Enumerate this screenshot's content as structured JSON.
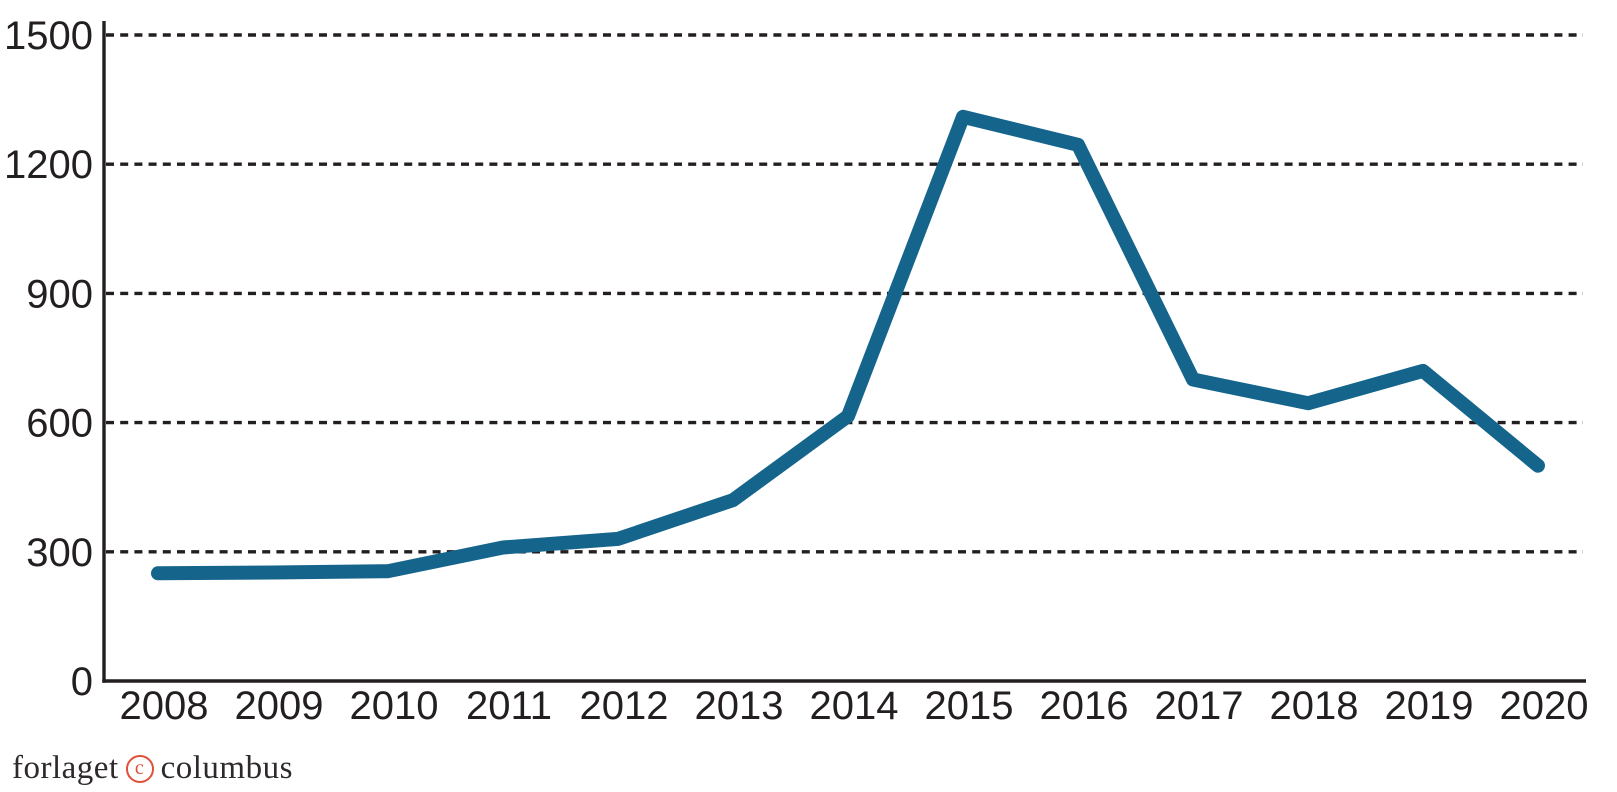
{
  "chart_data": {
    "type": "line",
    "x": [
      2008,
      2009,
      2010,
      2011,
      2012,
      2013,
      2014,
      2015,
      2016,
      2017,
      2018,
      2019,
      2020
    ],
    "series": [
      {
        "name": "value",
        "values": [
          250,
          252,
          255,
          310,
          330,
          420,
          615,
          1310,
          1245,
          700,
          645,
          720,
          500
        ]
      }
    ],
    "title": "",
    "xlabel": "",
    "ylabel": "",
    "ylim": [
      0,
      1500
    ],
    "yticks": [
      0,
      300,
      600,
      900,
      1200,
      1500
    ],
    "grid": "horizontal-dashed",
    "legend": "none",
    "line_color": "#14648c",
    "axis_color": "#231f20",
    "tick_label_color": "#231f20"
  },
  "watermark": {
    "left": "forlaget",
    "symbol": "c",
    "right": "columbus",
    "symbol_color": "#e0503a"
  }
}
